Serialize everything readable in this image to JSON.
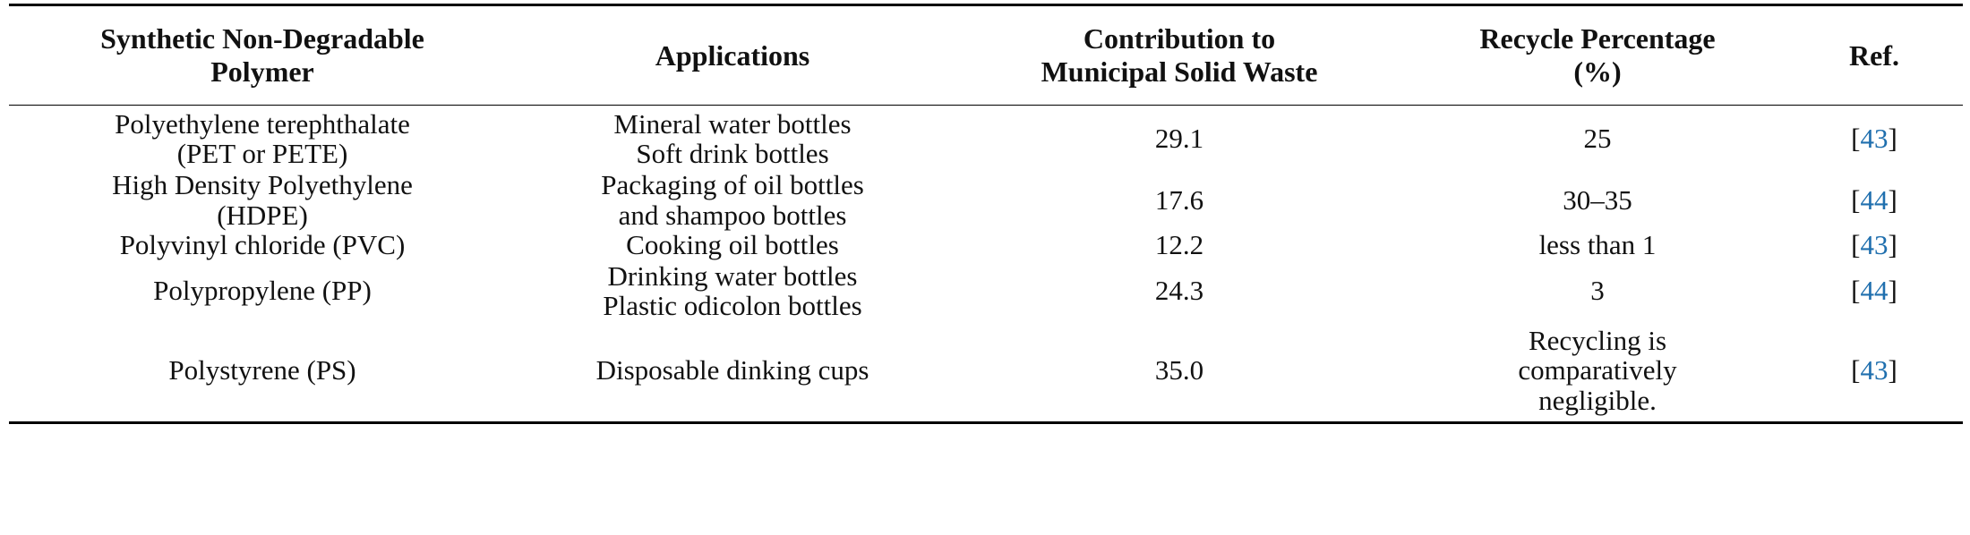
{
  "table": {
    "headers": [
      {
        "lines": [
          "Synthetic Non-Degradable",
          "Polymer"
        ]
      },
      {
        "lines": [
          "Applications"
        ]
      },
      {
        "lines": [
          "Contribution to",
          "Municipal Solid Waste"
        ]
      },
      {
        "lines": [
          "Recycle Percentage",
          "(%)"
        ]
      },
      {
        "lines": [
          "Ref."
        ]
      }
    ],
    "rows": [
      {
        "polymer": [
          "Polyethylene terephthalate",
          "(PET or PETE)"
        ],
        "applications": [
          "Mineral water bottles",
          "Soft drink bottles"
        ],
        "contribution": "29.1",
        "recycle": [
          "25"
        ],
        "ref": "43"
      },
      {
        "polymer": [
          "High Density Polyethylene",
          "(HDPE)"
        ],
        "applications": [
          "Packaging of oil bottles",
          "and shampoo bottles"
        ],
        "contribution": "17.6",
        "recycle": [
          "30–35"
        ],
        "ref": "44"
      },
      {
        "polymer": [
          "Polyvinyl chloride (PVC)"
        ],
        "applications": [
          "Cooking oil bottles"
        ],
        "contribution": "12.2",
        "recycle": [
          "less than 1"
        ],
        "ref": "43"
      },
      {
        "polymer": [
          "Polypropylene (PP)"
        ],
        "applications": [
          "Drinking water bottles",
          "Plastic odicolon bottles"
        ],
        "contribution": "24.3",
        "recycle": [
          "3"
        ],
        "ref": "44"
      },
      {
        "polymer": [
          "Polystyrene (PS)"
        ],
        "applications": [
          "Disposable dinking cups"
        ],
        "contribution": "35.0",
        "recycle": [
          "Recycling is",
          "comparatively",
          "negligible."
        ],
        "ref": "43"
      }
    ],
    "ref_open": "[",
    "ref_close": "]",
    "colors": {
      "ref_link": "#1f6fae",
      "text": "#111111",
      "rules": "#000000"
    }
  }
}
